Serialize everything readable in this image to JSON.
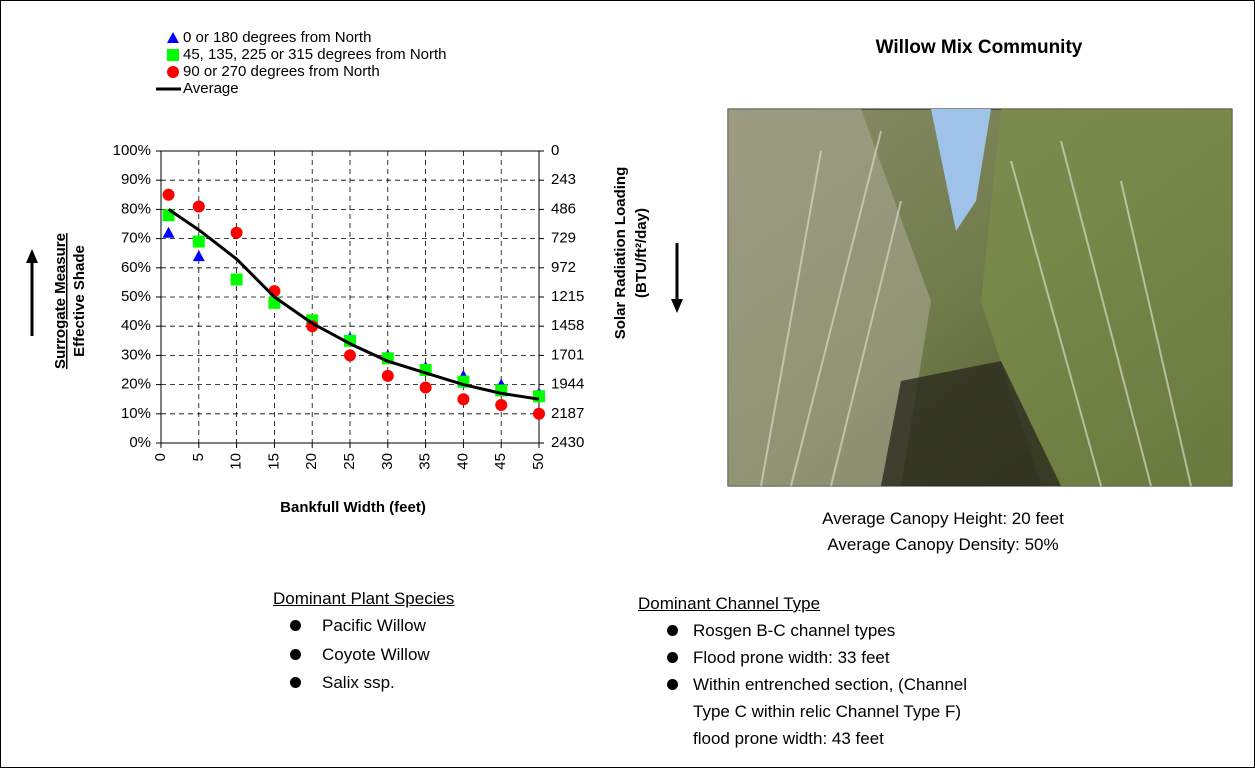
{
  "title": "Willow Mix Community",
  "chart_data": {
    "type": "scatter",
    "x": [
      1,
      5,
      10,
      15,
      20,
      25,
      30,
      35,
      40,
      45,
      50
    ],
    "series": [
      {
        "name": "0 or 180 degrees from North",
        "color": "#0000ff",
        "marker": "triangle",
        "values": [
          72,
          64,
          56,
          48,
          42,
          36,
          30,
          26,
          23,
          20,
          17
        ]
      },
      {
        "name": "45, 135, 225 or 315 degrees from North",
        "color": "#00ff00",
        "marker": "square",
        "values": [
          78,
          69,
          56,
          48,
          42,
          35,
          29,
          25,
          21,
          18,
          16
        ]
      },
      {
        "name": "90 or 270 degrees from North",
        "color": "#ff0000",
        "marker": "circle",
        "values": [
          85,
          81,
          72,
          52,
          40,
          30,
          23,
          19,
          15,
          13,
          10
        ]
      },
      {
        "name": "Average",
        "color": "#000000",
        "marker": "line",
        "values": [
          80,
          73,
          63,
          50,
          41,
          34,
          28,
          24,
          20,
          17,
          15
        ]
      }
    ],
    "xlabel": "Bankfull Width (feet)",
    "ylabel": [
      "Surrogate Measure",
      "Effective Shade"
    ],
    "y2label": [
      "Solar Radiation Loading",
      "(BTU/ft²/day)"
    ],
    "xlim": [
      0,
      50
    ],
    "xticks": [
      0,
      5,
      10,
      15,
      20,
      25,
      30,
      35,
      40,
      45,
      50
    ],
    "ylim": [
      0,
      100
    ],
    "yticks": [
      {
        "value": 0,
        "label": "0%"
      },
      {
        "value": 10,
        "label": "10%"
      },
      {
        "value": 20,
        "label": "20%"
      },
      {
        "value": 30,
        "label": "30%"
      },
      {
        "value": 40,
        "label": "40%"
      },
      {
        "value": 50,
        "label": "50%"
      },
      {
        "value": 60,
        "label": "60%"
      },
      {
        "value": 70,
        "label": "70%"
      },
      {
        "value": 80,
        "label": "80%"
      },
      {
        "value": 90,
        "label": "90%"
      },
      {
        "value": 100,
        "label": "100%"
      }
    ],
    "y2lim": [
      2430,
      0
    ],
    "y2ticks": [
      0,
      243,
      486,
      729,
      972,
      1215,
      1458,
      1701,
      1944,
      2187,
      2430
    ],
    "grid": true
  },
  "canopy": [
    "Average Canopy Height: 20 feet",
    "Average Canopy Density:  50%"
  ],
  "species": {
    "heading": "Dominant Plant Species",
    "items": [
      "Pacific Willow",
      "Coyote Willow",
      "Salix ssp."
    ]
  },
  "channel": {
    "heading": "Dominant Channel Type",
    "items": [
      "Rosgen B-C channel types",
      "Flood prone width: 33 feet",
      "Within entrenched section, (Channel Type C within relic Channel Type F) flood prone width: 43 feet"
    ]
  }
}
